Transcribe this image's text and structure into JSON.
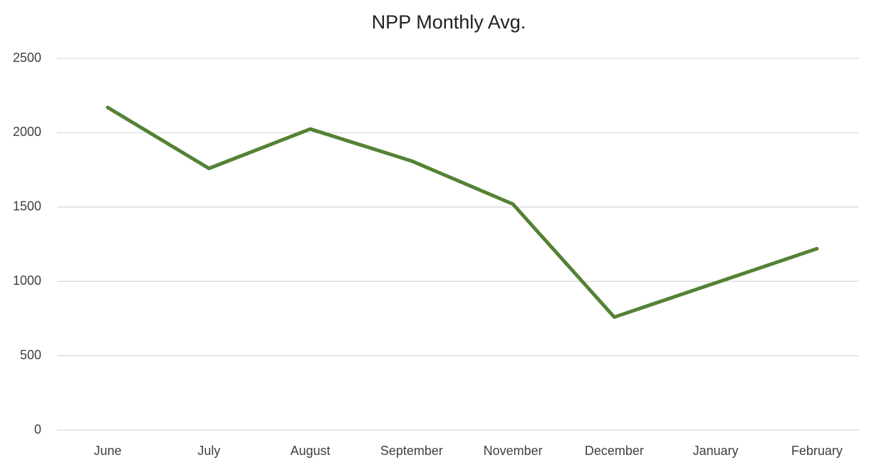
{
  "chart_data": {
    "type": "line",
    "title": "NPP Monthly Avg.",
    "categories": [
      "June",
      "July",
      "August",
      "September",
      "November",
      "December",
      "January",
      "February"
    ],
    "series": [
      {
        "name": "NPP",
        "color": "#548235",
        "values": [
          2170,
          1760,
          2025,
          1810,
          1520,
          760,
          990,
          1220
        ]
      }
    ],
    "ylim": [
      0,
      2500
    ],
    "yticks": [
      0,
      500,
      1000,
      1500,
      2000,
      2500
    ],
    "grid": true,
    "legend": false
  }
}
